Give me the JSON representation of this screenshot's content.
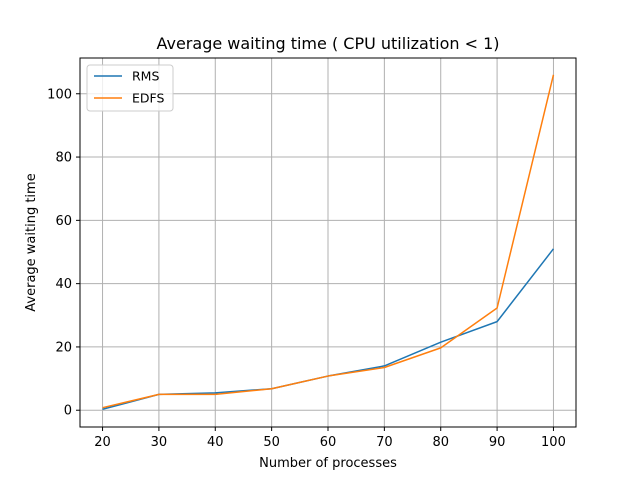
{
  "chart_data": {
    "type": "line",
    "title": "Average waiting time ( CPU utilization < 1)",
    "xlabel": "Number of processes",
    "ylabel": "Average waiting time",
    "x": [
      20,
      30,
      40,
      50,
      60,
      70,
      80,
      90,
      100
    ],
    "xticks": [
      20,
      30,
      40,
      50,
      60,
      70,
      80,
      90,
      100
    ],
    "yticks": [
      0,
      20,
      40,
      60,
      80,
      100
    ],
    "xlim": [
      16,
      104
    ],
    "ylim": [
      -5.3,
      111.3
    ],
    "grid": true,
    "legend_position": "top-left",
    "series": [
      {
        "name": "RMS",
        "color": "#1f77b4",
        "values": [
          0.3,
          5.0,
          5.5,
          6.8,
          10.8,
          14.0,
          21.5,
          28.0,
          51.0
        ]
      },
      {
        "name": "EDFS",
        "color": "#ff7f0e",
        "values": [
          0.8,
          5.0,
          5.0,
          6.8,
          10.8,
          13.5,
          19.7,
          32.3,
          106.0
        ]
      }
    ]
  }
}
